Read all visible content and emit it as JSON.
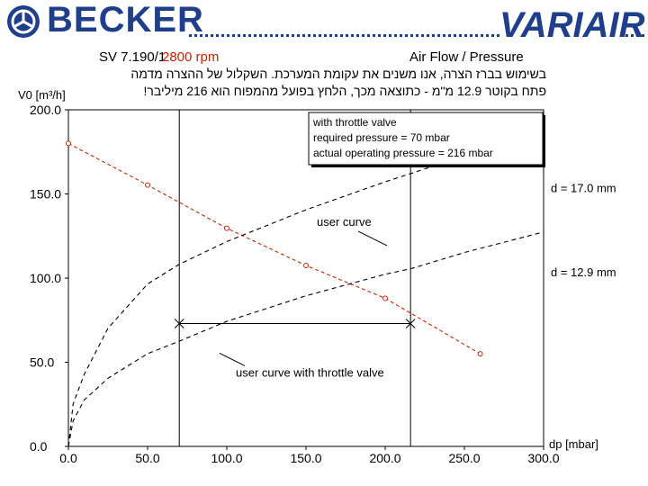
{
  "header": {
    "brand_left": "BECKER",
    "brand_right": "VARIAIR",
    "model": "SV 7.190/1",
    "rpm": "2800 rpm",
    "chart_type_title": "Air Flow / Pressure",
    "hebrew_line1": "בשימוש בברז הצרה, אנו משנים את עקומת המערכת. השקלול של ההצרה מדמה",
    "hebrew_line2": "פתח בקוטר 12.9 מ\"מ - כתוצאה מכך, הלחץ בפועל מהמפוח הוא 216 מיליבר!",
    "colors": {
      "brand": "#1f3f8c",
      "rpm": "#cc2200"
    }
  },
  "info_box": {
    "line1": "with throttle valve",
    "line2": "required pressure = 70 mbar",
    "line3": "actual operating pressure = 216 mbar"
  },
  "chart_data": {
    "type": "line",
    "xlabel": "dp [mbar]",
    "ylabel": "V0 [m³/h]",
    "xlim": [
      0,
      300
    ],
    "ylim": [
      0,
      200
    ],
    "x_ticks": [
      "0.0",
      "50.0",
      "100.0",
      "150.0",
      "200.0",
      "250.0",
      "300.0"
    ],
    "y_ticks": [
      "0.0",
      "50.0",
      "100.0",
      "150.0",
      "200.0"
    ],
    "grid": false,
    "series": [
      {
        "color": "#cc2200",
        "style": "dashed-markers",
        "x": [
          0,
          50,
          100,
          150,
          200,
          260
        ],
        "y": [
          180,
          155.3,
          129.6,
          107.5,
          88,
          55
        ]
      },
      {
        "color": "#000000",
        "style": "dashed",
        "x": [
          0,
          3,
          10,
          25,
          50,
          70,
          100,
          150,
          200,
          250,
          300
        ],
        "y": [
          0,
          25.3,
          42.8,
          70.2,
          96.5,
          108.2,
          121.7,
          140.6,
          157.2,
          172.5,
          186.3
        ]
      },
      {
        "color": "#000000",
        "style": "dashed",
        "x": [
          0,
          3,
          10,
          25,
          50,
          70,
          100,
          150,
          200,
          216,
          250,
          300
        ],
        "y": [
          0,
          15.3,
          27.6,
          40.5,
          55.1,
          62.5,
          74.3,
          89.5,
          102.3,
          105.5,
          115.2,
          127.4
        ]
      }
    ],
    "reference_lines": {
      "vertical_x": [
        70,
        216
      ],
      "horizontal_y": 73,
      "intersection_points": [
        [
          70,
          73
        ],
        [
          216,
          73
        ]
      ]
    },
    "annotations": [
      {
        "text": "user curve",
        "x": 150,
        "y": 130
      },
      {
        "text": "user curve with throttle valve",
        "x": 100,
        "y": 42
      },
      {
        "text": "d = 17.0 mm",
        "x": 300,
        "y": 150
      },
      {
        "text": "d = 12.9 mm",
        "x": 300,
        "y": 100
      }
    ]
  }
}
